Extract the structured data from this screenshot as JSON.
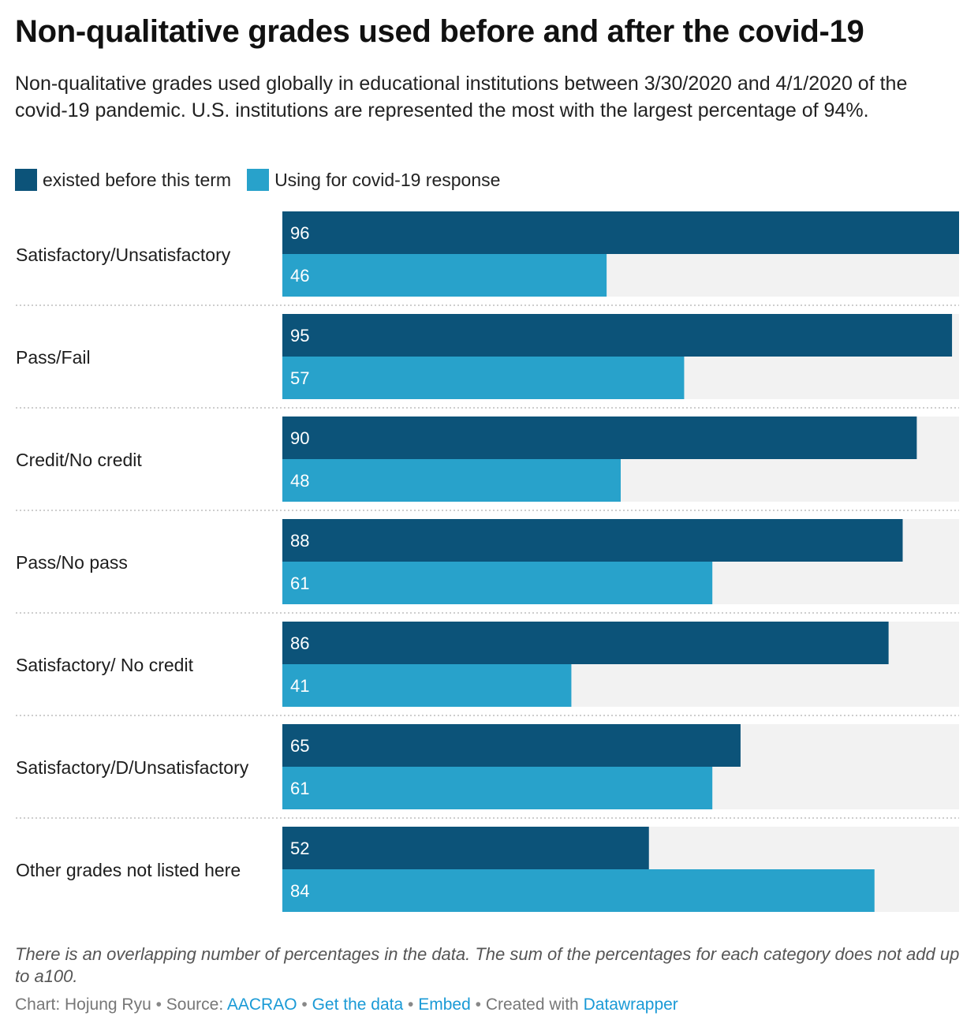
{
  "title": "Non-qualitative grades used before and after the covid-19",
  "subtitle": "Non-qualitative grades used globally in educational institutions between 3/30/2020 and 4/1/2020 of the covid-19 pandemic. U.S. institutions are represented the most with the largest percentage of 94%.",
  "colors": {
    "series_before": "#0c5379",
    "series_after": "#28a2cb",
    "track": "#f2f2f2"
  },
  "chart_data": {
    "type": "bar",
    "orientation": "horizontal",
    "grouped": true,
    "categories": [
      "Satisfactory/Unsatisfactory",
      "Pass/Fail",
      "Credit/No credit",
      "Pass/No pass",
      "Satisfactory/ No credit",
      "Satisfactory/D/Unsatisfactory",
      "Other grades not listed here"
    ],
    "series": [
      {
        "name": "existed before this term",
        "color": "#0c5379",
        "values": [
          96,
          95,
          90,
          88,
          86,
          65,
          52
        ]
      },
      {
        "name": "Using for covid-19 response",
        "color": "#28a2cb",
        "values": [
          46,
          57,
          48,
          61,
          41,
          61,
          84
        ]
      }
    ],
    "xlim": [
      0,
      96
    ],
    "legend": "top-left",
    "data_labels": "inside-left",
    "grid": false
  },
  "notes": "There is an overlapping number of percentages in the data. The sum of the percentages for each category does not add up to a100.",
  "byline": {
    "chart_prefix": "Chart: Hojung Ryu",
    "source_prefix": "Source:",
    "source": "AACRAO",
    "get_data": "Get the data",
    "embed": "Embed",
    "created_prefix": "Created with",
    "tool": "Datawrapper",
    "separator": "•"
  }
}
